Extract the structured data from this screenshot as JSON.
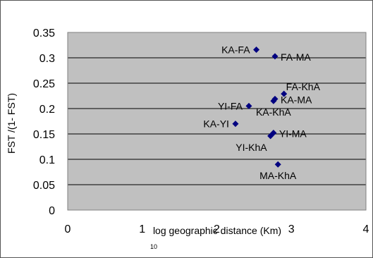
{
  "chart_data": {
    "type": "scatter",
    "xlabel": "log geographic distance (Km)",
    "xlabel_subscript": "10",
    "ylabel": "FST /(1- FST)",
    "xlim": [
      0,
      4
    ],
    "ylim": [
      0,
      0.35
    ],
    "x_ticks": [
      0,
      1,
      2,
      3,
      4
    ],
    "x_tick_labels": [
      "0",
      "1",
      "2",
      "3",
      "4"
    ],
    "y_ticks": [
      0,
      0.05,
      0.1,
      0.15,
      0.2,
      0.25,
      0.3,
      0.35
    ],
    "y_tick_labels": [
      "0",
      "0.05",
      "0.1",
      "0.15",
      "0.2",
      "0.25",
      "0.3",
      "0.35"
    ],
    "grid": "horizontal",
    "legend": "none",
    "colors": {
      "plot_area": "#c0c0c0",
      "marker": "#000080",
      "gridline": "#000000"
    },
    "points": [
      {
        "label": "KA-FA",
        "x": 2.53,
        "y": 0.316,
        "label_pos": "left"
      },
      {
        "label": "FA-MA",
        "x": 2.78,
        "y": 0.303,
        "label_pos": "right"
      },
      {
        "label": "FA-KhA",
        "x": 2.9,
        "y": 0.229,
        "label_pos": "above-right"
      },
      {
        "label": "KA-MA",
        "x": 2.78,
        "y": 0.219,
        "label_pos": "right"
      },
      {
        "label": "YI-FA",
        "x": 2.43,
        "y": 0.205,
        "label_pos": "left"
      },
      {
        "label": "KA-KhA",
        "x": 2.76,
        "y": 0.215,
        "label_pos": "below"
      },
      {
        "label": "KA-YI",
        "x": 2.25,
        "y": 0.17,
        "label_pos": "left"
      },
      {
        "label": "YI-MA",
        "x": 2.76,
        "y": 0.152,
        "label_pos": "right"
      },
      {
        "label": "YI-KhA",
        "x": 2.72,
        "y": 0.146,
        "label_pos": "below-left"
      },
      {
        "label": "MA-KhA",
        "x": 2.82,
        "y": 0.09,
        "label_pos": "below"
      }
    ]
  }
}
